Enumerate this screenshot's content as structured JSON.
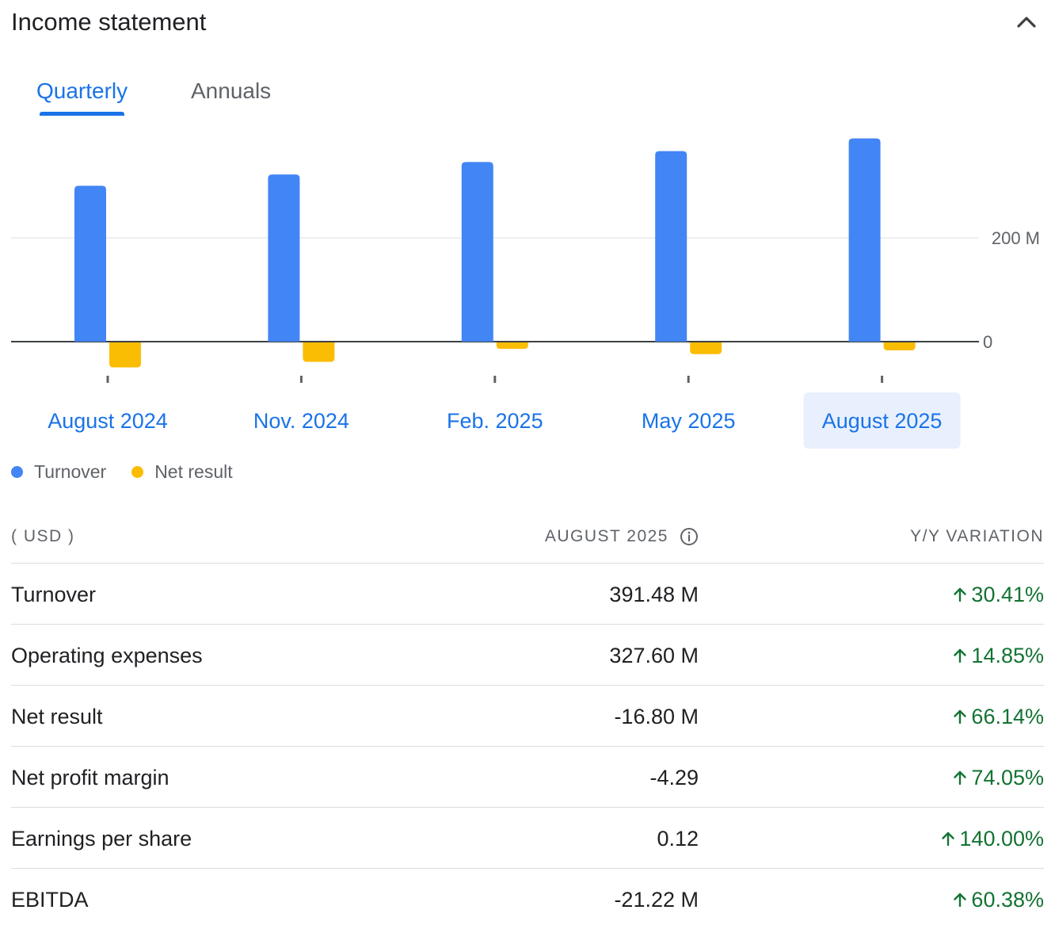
{
  "header": {
    "title": "Income statement",
    "collapse_icon": "chevron-up-icon"
  },
  "tabs": [
    {
      "label": "Quarterly",
      "active": true
    },
    {
      "label": "Annuals",
      "active": false
    }
  ],
  "chart_data": {
    "type": "bar",
    "categories": [
      "August 2024",
      "Nov. 2024",
      "Feb. 2025",
      "May 2025",
      "August 2025"
    ],
    "selected_category": "August 2025",
    "series": [
      {
        "name": "Turnover",
        "color": "#4285f4",
        "values": [
          300.2,
          322.0,
          346.0,
          367.0,
          391.48
        ]
      },
      {
        "name": "Net result",
        "color": "#fbbc04",
        "values": [
          -49.6,
          -39.0,
          -14.0,
          -24.0,
          -16.8
        ]
      }
    ],
    "y_ticks": [
      {
        "value": 0,
        "label": "0"
      },
      {
        "value": 200,
        "label": "200 M"
      }
    ],
    "ylim": [
      -60,
      400
    ],
    "grid": true,
    "legend_position": "bottom-left"
  },
  "legend": [
    {
      "label": "Turnover",
      "color": "#4285f4"
    },
    {
      "label": "Net result",
      "color": "#fbbc04"
    }
  ],
  "table": {
    "currency": "( USD )",
    "period": "AUGUST 2025",
    "variation": "Y/Y VARIATION",
    "info_icon": "info-icon",
    "rows": [
      {
        "name": "Turnover",
        "value": "391.48 M",
        "change": "30.41%",
        "direction": "up"
      },
      {
        "name": "Operating expenses",
        "value": "327.60 M",
        "change": "14.85%",
        "direction": "up"
      },
      {
        "name": "Net result",
        "value": "-16.80 M",
        "change": "66.14%",
        "direction": "up"
      },
      {
        "name": "Net profit margin",
        "value": "-4.29",
        "change": "74.05%",
        "direction": "up"
      },
      {
        "name": "Earnings per share",
        "value": "0.12",
        "change": "140.00%",
        "direction": "up"
      },
      {
        "name": "EBITDA",
        "value": "-21.22 M",
        "change": "60.38%",
        "direction": "up"
      }
    ]
  },
  "colors": {
    "accent": "#1a73e8",
    "positive": "#137333",
    "selected_bg": "#e8f0fe"
  }
}
